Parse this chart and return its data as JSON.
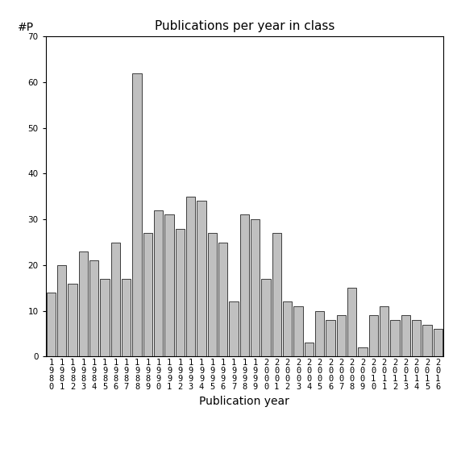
{
  "title": "Publications per year in class",
  "xlabel": "Publication year",
  "ylabel": "#P",
  "ylim": [
    0,
    70
  ],
  "yticks": [
    0,
    10,
    20,
    30,
    40,
    50,
    60,
    70
  ],
  "years": [
    1980,
    1981,
    1982,
    1983,
    1984,
    1985,
    1986,
    1987,
    1988,
    1989,
    1990,
    1991,
    1992,
    1993,
    1994,
    1995,
    1996,
    1997,
    1998,
    1999,
    2000,
    2001,
    2002,
    2003,
    2004,
    2005,
    2006,
    2007,
    2008,
    2009,
    2010,
    2011,
    2012,
    2013,
    2014,
    2015,
    2016
  ],
  "values": [
    14,
    20,
    16,
    23,
    21,
    17,
    25,
    17,
    62,
    27,
    32,
    31,
    28,
    35,
    34,
    27,
    25,
    12,
    31,
    30,
    17,
    27,
    12,
    11,
    3,
    10,
    8,
    9,
    15,
    2,
    9,
    11,
    8,
    9,
    8,
    7,
    6
  ],
  "bar_color": "#c0c0c0",
  "bar_edgecolor": "#000000",
  "bg_color": "#ffffff",
  "title_fontsize": 11,
  "axis_label_fontsize": 10,
  "tick_fontsize": 7.5
}
